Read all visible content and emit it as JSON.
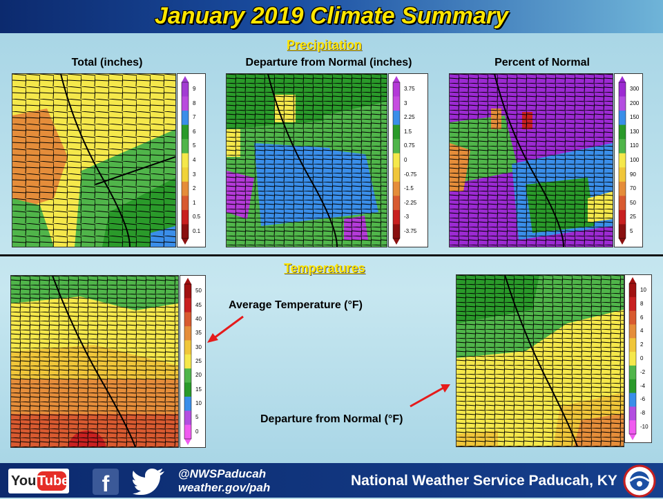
{
  "header": {
    "title": "January 2019 Climate Summary"
  },
  "precip": {
    "section_title": "Precipitation",
    "total": {
      "label": "Total (inches)",
      "ticks": [
        "9",
        "8",
        "7",
        "6",
        "5",
        "4",
        "3",
        "2",
        "1",
        "0.5",
        "0.1"
      ],
      "colors": [
        "#a23cd3",
        "#b94bde",
        "#3a8ee9",
        "#2a9a2a",
        "#50b54a",
        "#f5e84b",
        "#f0d33a",
        "#e58d3a",
        "#d85a30",
        "#c82020",
        "#8a1010"
      ]
    },
    "departure": {
      "label": "Departure from Normal (inches)",
      "ticks": [
        "3.75",
        "3",
        "2.25",
        "1.5",
        "0.75",
        "0",
        "-0.75",
        "-1.5",
        "-2.25",
        "-3",
        "-3.75"
      ],
      "colors": [
        "#b43ad8",
        "#c64de0",
        "#3a8ee9",
        "#2a9a2a",
        "#50b54a",
        "#f5e84b",
        "#f0c63a",
        "#e58d3a",
        "#d85a30",
        "#c82020",
        "#8a1010"
      ]
    },
    "percent": {
      "label": "Percent of Normal",
      "ticks": [
        "300",
        "200",
        "150",
        "130",
        "110",
        "100",
        "90",
        "70",
        "50",
        "25",
        "5"
      ],
      "colors": [
        "#9c2ad2",
        "#b34ee0",
        "#3a8ee9",
        "#2a9a2a",
        "#50b54a",
        "#f5e84b",
        "#f0c63a",
        "#e58d3a",
        "#d85a30",
        "#c82020",
        "#8a1010"
      ]
    }
  },
  "temps": {
    "section_title": "Temperatures",
    "avg": {
      "label": "Average Temperature (°F)",
      "ticks": [
        "50",
        "45",
        "40",
        "35",
        "30",
        "25",
        "20",
        "15",
        "10",
        "5",
        "0"
      ],
      "colors": [
        "#a01010",
        "#c82020",
        "#d85a30",
        "#e58d3a",
        "#f0c63a",
        "#f5e84b",
        "#50b54a",
        "#2a9a2a",
        "#3a8ee9",
        "#b34ee0",
        "#f05bf0"
      ]
    },
    "departure": {
      "label": "Departure from Normal (°F)",
      "ticks": [
        "10",
        "8",
        "6",
        "4",
        "2",
        "0",
        "-2",
        "-4",
        "-6",
        "-8",
        "-10"
      ],
      "colors": [
        "#a01010",
        "#c82020",
        "#d85a30",
        "#e58d3a",
        "#f0c63a",
        "#f5e84b",
        "#50b54a",
        "#2a9a2a",
        "#3a8ee9",
        "#b34ee0",
        "#f05bf0"
      ]
    }
  },
  "footer": {
    "youtube_you": "You",
    "youtube_tube": "Tube",
    "facebook_glyph": "f",
    "twitter_handle": "@NWSPaducah",
    "website": "weather.gov/pah",
    "office_name": "National Weather Service Paducah, KY",
    "icons": [
      "youtube-icon",
      "facebook-icon",
      "twitter-icon",
      "noaa-logo-icon"
    ]
  }
}
